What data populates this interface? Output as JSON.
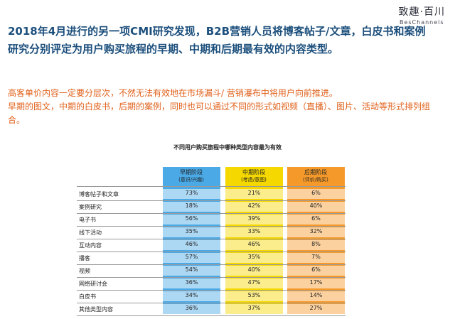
{
  "logo": {
    "mark": "致趣·百川",
    "sub": "BesChannels"
  },
  "headline": "2018年4月进行的另一项CMI研究发现，B2B营销人员将博客帖子/文章，白皮书和案例研究分别评定为用户购买旅程的早期、中期和后期最有效的内容类型。",
  "notes": [
    "高客单价内容一定要分层次，不然无法有效地在市场漏斗/ 营销瀑布中将用户向前推进。",
    "早期的图文，中期的白皮书，后期的案例，同时也可以通过不同的形式如视频（直播）、图片、活动等形式排列组合。"
  ],
  "colors": {
    "headline": "#1c4f7c",
    "notes": "#e0601a",
    "early": "#4ba9e6",
    "middle": "#f5d800",
    "late": "#f59a2a"
  },
  "chart_data": {
    "type": "table",
    "title": "不同用户购买旅程中哪种类型内容最为有效",
    "columns": [
      {
        "name": "早期阶段",
        "sub": "(意识/兴趣)"
      },
      {
        "name": "中期阶段",
        "sub": "(考虑/意图)"
      },
      {
        "name": "后期阶段",
        "sub": "(评价/购买)"
      }
    ],
    "rows": [
      {
        "label": "博客帖子和文章",
        "values": [
          "73%",
          "21%",
          "6%"
        ]
      },
      {
        "label": "案例研究",
        "values": [
          "18%",
          "42%",
          "40%"
        ]
      },
      {
        "label": "电子书",
        "values": [
          "56%",
          "39%",
          "6%"
        ]
      },
      {
        "label": "线下活动",
        "values": [
          "35%",
          "33%",
          "32%"
        ]
      },
      {
        "label": "互动内容",
        "values": [
          "46%",
          "46%",
          "8%"
        ]
      },
      {
        "label": "播客",
        "values": [
          "57%",
          "35%",
          "7%"
        ]
      },
      {
        "label": "视频",
        "values": [
          "54%",
          "40%",
          "6%"
        ]
      },
      {
        "label": "网络研讨会",
        "values": [
          "36%",
          "47%",
          "17%"
        ]
      },
      {
        "label": "白皮书",
        "values": [
          "34%",
          "53%",
          "14%"
        ]
      },
      {
        "label": "其他类型内容",
        "values": [
          "36%",
          "37%",
          "27%"
        ]
      }
    ]
  }
}
